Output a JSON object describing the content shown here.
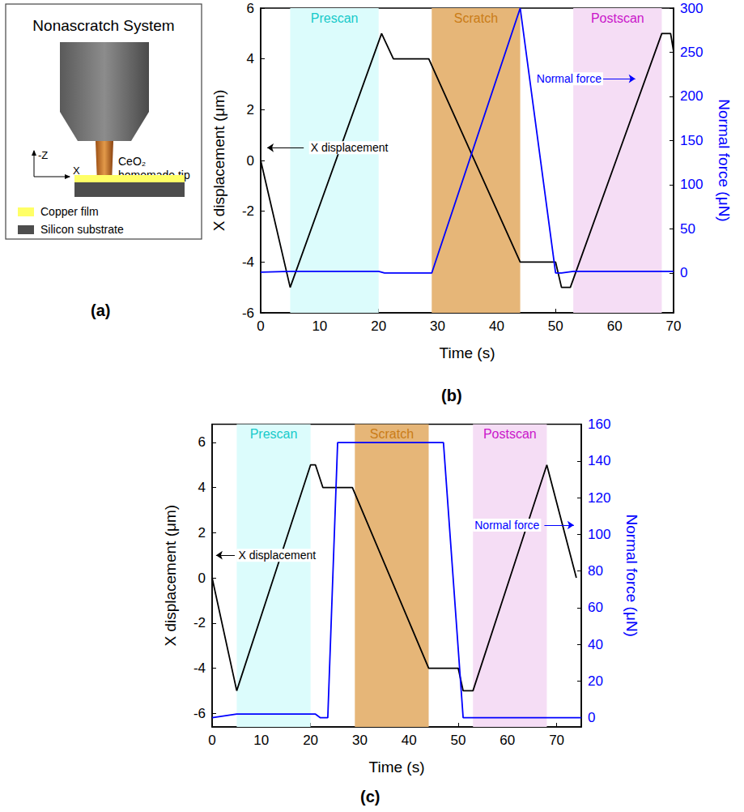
{
  "diagram": {
    "panel": "(a)",
    "title": "Nonascratch System",
    "tip_label": "CeO₂ homemade tip",
    "axes": [
      "-Z",
      "X"
    ],
    "layers": [
      {
        "label": "Copper film",
        "color": "#ffff66"
      },
      {
        "label": "Silicon substrate",
        "color": "#4d4d4d"
      }
    ]
  },
  "chart_data": [
    {
      "type": "line",
      "panel": "(b)",
      "x_label": "Time (s)",
      "y_label": "X displacement (μm)",
      "y2_label": "Normal force (μN)",
      "xlim": [
        0,
        70
      ],
      "xticks": [
        0,
        10,
        20,
        30,
        40,
        50,
        60,
        70
      ],
      "ylim": [
        -6,
        6
      ],
      "yticks": [
        -6,
        -4,
        -2,
        0,
        2,
        4,
        6
      ],
      "y2lim": [
        -45,
        300
      ],
      "y2ticks": [
        0,
        50,
        100,
        150,
        200,
        250,
        300
      ],
      "grid": false,
      "regions": [
        {
          "label": "Prescan",
          "start": 5,
          "end": 20,
          "color": "#dcfcfc"
        },
        {
          "label": "Scratch",
          "start": 29,
          "end": 44,
          "color": "#e6b678"
        },
        {
          "label": "Postscan",
          "start": 53,
          "end": 68,
          "color": "#f5ddf5"
        }
      ],
      "series": [
        {
          "name": "X displacement",
          "color": "#000000",
          "x": [
            0,
            5,
            20.5,
            22.5,
            28.5,
            44,
            50,
            51,
            52.5,
            68,
            69.5,
            70
          ],
          "values": [
            0,
            -5,
            5,
            4,
            4,
            -4,
            -4,
            -5,
            -5,
            5,
            5,
            4.3
          ],
          "annotation": {
            "x": 8.2,
            "y": 0.5,
            "arrow": [
              7.3,
              1.1
            ]
          }
        },
        {
          "name": "Normal force",
          "color": "#0000ff",
          "axis": "y2",
          "x": [
            0,
            5,
            20,
            21,
            29,
            44,
            50,
            51,
            53,
            68,
            70
          ],
          "values": [
            1,
            2,
            2,
            0,
            0,
            300,
            0,
            0,
            2,
            2,
            2
          ],
          "annotation": {
            "x": 46.5,
            "y": 220,
            "arrow": [
              58,
              63.5
            ]
          }
        }
      ]
    },
    {
      "type": "line",
      "panel": "(c)",
      "x_label": "Time (s)",
      "y_label": "X displacement (μm)",
      "y2_label": "Normal force (μN)",
      "xlim": [
        0,
        75
      ],
      "xticks": [
        0,
        10,
        20,
        30,
        40,
        50,
        60,
        70
      ],
      "ylim": [
        -6.6,
        6.8
      ],
      "yticks": [
        -6,
        -4,
        -2,
        0,
        2,
        4,
        6
      ],
      "y2lim": [
        -5,
        160
      ],
      "y2ticks": [
        0,
        20,
        40,
        60,
        80,
        100,
        120,
        140,
        160
      ],
      "grid": false,
      "regions": [
        {
          "label": "Prescan",
          "start": 5,
          "end": 20,
          "color": "#dcfcfc"
        },
        {
          "label": "Scratch",
          "start": 29,
          "end": 44,
          "color": "#e6b678"
        },
        {
          "label": "Postscan",
          "start": 53,
          "end": 68,
          "color": "#f5ddf5"
        }
      ],
      "series": [
        {
          "name": "X displacement",
          "color": "#000000",
          "x": [
            0,
            5,
            20,
            21,
            22.5,
            28.5,
            44,
            50,
            51,
            53,
            68,
            74
          ],
          "values": [
            0,
            -5,
            5,
            5,
            4,
            4,
            -4,
            -4,
            -5,
            -5,
            5,
            0
          ],
          "annotation": {
            "x": 5,
            "y": 1.0,
            "arrow": [
              4.6,
              0.8
            ]
          }
        },
        {
          "name": "Normal force",
          "color": "#0000ff",
          "axis": "y2",
          "x": [
            0,
            5,
            21,
            22,
            23.5,
            25.5,
            47,
            51,
            75
          ],
          "values": [
            0,
            2,
            2,
            0,
            0,
            150,
            150,
            0,
            0
          ],
          "annotation": {
            "x": 53,
            "y": 105,
            "arrow": [
              67.5,
              73.5
            ]
          }
        }
      ]
    }
  ]
}
